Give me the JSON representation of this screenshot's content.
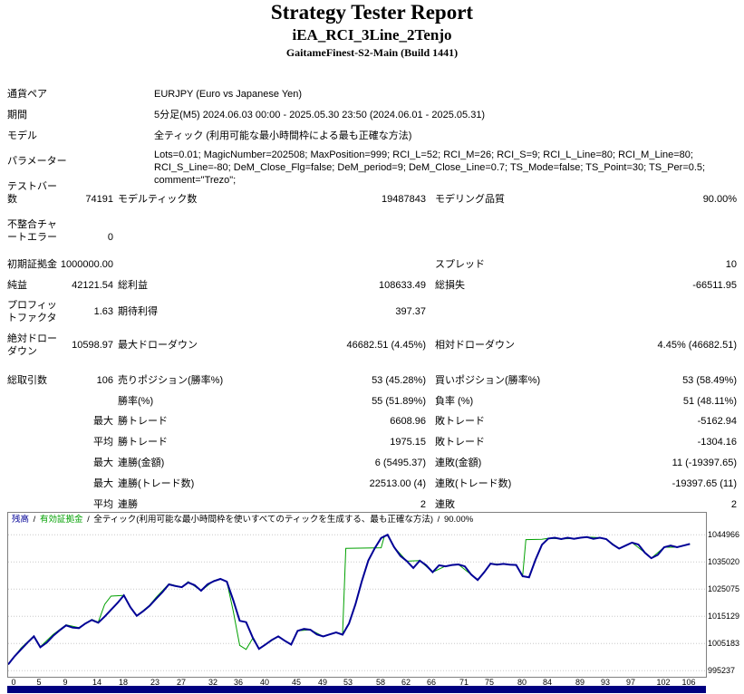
{
  "header": {
    "title": "Strategy Tester Report",
    "subtitle": "iEA_RCI_3Line_2Tenjo",
    "build": "GaitameFinest-S2-Main (Build 1441)"
  },
  "info": {
    "symbol_label": "通貨ペア",
    "symbol_value": "EURJPY (Euro vs Japanese Yen)",
    "period_label": "期間",
    "period_value": "5分足(M5) 2024.06.03 00:00 - 2025.05.30 23:50 (2024.06.01 - 2025.05.31)",
    "model_label": "モデル",
    "model_value": "全ティック (利用可能な最小時間枠による最も正確な方法)",
    "params_label": "パラメーター",
    "params_value": "Lots=0.01; MagicNumber=202508; MaxPosition=999; RCI_L=52; RCI_M=26; RCI_S=9; RCI_L_Line=80; RCI_M_Line=80; RCI_S_Line=-80; DeM_Close_Flg=false; DeM_period=9; DeM_Close_Line=0.7; TS_Mode=false; TS_Point=30; TS_Per=0.5; comment=\"Trezo\";"
  },
  "stats_rows": [
    {
      "c1": "テストバー数",
      "c2": "74191",
      "c3": "モデルティック数",
      "c4": "19487843",
      "c5": "モデリング品質",
      "c6": "90.00%"
    },
    {
      "c1": "不整合チャートエラー",
      "c2": "0"
    },
    {
      "c1": "初期証拠金",
      "c2": "1000000.00",
      "c5": "スプレッド",
      "c6": "10"
    },
    {
      "c1": "純益",
      "c2": "42121.54",
      "c3": "総利益",
      "c4": "108633.49",
      "c5": "総損失",
      "c6": "-66511.95"
    },
    {
      "c1": "プロフィットファクタ",
      "c2": "1.63",
      "c3": "期待利得",
      "c4": "397.37"
    },
    {
      "c1": "絶対ドローダウン",
      "c2": "10598.97",
      "c3": "最大ドローダウン",
      "c4": "46682.51 (4.45%)",
      "c5": "相対ドローダウン",
      "c6": "4.45% (46682.51)"
    },
    {
      "c1": "総取引数",
      "c2": "106",
      "c3": "売りポジション(勝率%)",
      "c4": "53 (45.28%)",
      "c5": "買いポジション(勝率%)",
      "c6": "53 (58.49%)"
    },
    {
      "c3": "勝率(%)",
      "c4": "55 (51.89%)",
      "c5": "負率 (%)",
      "c6": "51 (48.11%)"
    },
    {
      "c2": "最大",
      "c3": "勝トレード",
      "c4": "6608.96",
      "c5": "敗トレード",
      "c6": "-5162.94"
    },
    {
      "c2": "平均",
      "c3": "勝トレード",
      "c4": "1975.15",
      "c5": "敗トレード",
      "c6": "-1304.16"
    },
    {
      "c2": "最大",
      "c3": "連勝(金額)",
      "c4": "6 (5495.37)",
      "c5": "連敗(金額)",
      "c6": "11 (-19397.65)"
    },
    {
      "c2": "最大",
      "c3": "連勝(トレード数)",
      "c4": "22513.00 (4)",
      "c5": "連敗(トレード数)",
      "c6": "-19397.65 (11)"
    },
    {
      "c2": "平均",
      "c3": "連勝",
      "c4": "2",
      "c5": "連敗",
      "c6": "2"
    }
  ],
  "chart_data": {
    "type": "line",
    "title": "",
    "xlabel": "",
    "ylabel": "",
    "legend": {
      "balance": "残高",
      "sep": "/",
      "equity": "有効証拠金",
      "model": "全ティック(利用可能な最小時間枠を使いすべてのティックを生成する、最も正確な方法)",
      "quality": "90.00%"
    },
    "x_ticks": [
      0,
      5,
      9,
      14,
      18,
      23,
      27,
      32,
      36,
      40,
      45,
      49,
      53,
      58,
      62,
      66,
      71,
      75,
      80,
      84,
      89,
      93,
      97,
      102,
      106
    ],
    "y_ticks": [
      995237,
      1005183,
      1015129,
      1025075,
      1035020,
      1044966
    ],
    "xlim": [
      0,
      108.5
    ],
    "ylim": [
      993000,
      1053000
    ],
    "grid": "horizontal-dotted",
    "legend_position": "top-left-inside",
    "colors": {
      "grid": "#c8c8c8",
      "lots_bar": "#000080",
      "border": "#808080"
    },
    "series": [
      {
        "name": "equity",
        "color": "#00A000",
        "width": 1,
        "points": [
          [
            0,
            997500
          ],
          [
            2,
            1003500
          ],
          [
            4,
            1008000
          ],
          [
            5,
            1004000
          ],
          [
            7,
            1008500
          ],
          [
            9,
            1012000
          ],
          [
            11,
            1011000
          ],
          [
            13,
            1014000
          ],
          [
            14,
            1013000
          ],
          [
            15,
            1019500
          ],
          [
            16,
            1022500
          ],
          [
            18,
            1022800
          ],
          [
            19,
            1018500
          ],
          [
            20,
            1015300
          ],
          [
            22,
            1019200
          ],
          [
            23,
            1022000
          ],
          [
            25,
            1027000
          ],
          [
            27,
            1025800
          ],
          [
            28,
            1027800
          ],
          [
            30,
            1024500
          ],
          [
            32,
            1028200
          ],
          [
            33,
            1028800
          ],
          [
            34,
            1027800
          ],
          [
            35,
            1017000
          ],
          [
            36,
            1004500
          ],
          [
            37,
            1003000
          ],
          [
            38,
            1007000
          ],
          [
            39,
            1003200
          ],
          [
            40,
            1004800
          ],
          [
            42,
            1007800
          ],
          [
            44,
            1004800
          ],
          [
            45,
            1009800
          ],
          [
            47,
            1010200
          ],
          [
            49,
            1007800
          ],
          [
            51,
            1009200
          ],
          [
            52,
            1008400
          ],
          [
            52.5,
            1040000
          ],
          [
            58,
            1040200
          ],
          [
            58.5,
            1044500
          ],
          [
            59,
            1044966
          ],
          [
            60,
            1040500
          ],
          [
            62,
            1035300
          ],
          [
            64,
            1035500
          ],
          [
            66,
            1031300
          ],
          [
            68,
            1033500
          ],
          [
            70,
            1034100
          ],
          [
            72,
            1030400
          ],
          [
            73,
            1028400
          ],
          [
            75,
            1034400
          ],
          [
            79,
            1033900
          ],
          [
            80,
            1029800
          ],
          [
            80.5,
            1043200
          ],
          [
            83,
            1043300
          ],
          [
            84,
            1043700
          ],
          [
            86,
            1043500
          ],
          [
            88,
            1043600
          ],
          [
            90,
            1044100
          ],
          [
            92,
            1043900
          ],
          [
            93,
            1043400
          ],
          [
            95,
            1039900
          ],
          [
            97,
            1042100
          ],
          [
            99,
            1038400
          ],
          [
            100,
            1036400
          ],
          [
            102,
            1040400
          ],
          [
            104,
            1040400
          ],
          [
            106,
            1041600
          ]
        ]
      },
      {
        "name": "balance",
        "color": "#000096",
        "width": 2,
        "points": [
          [
            0,
            997500
          ],
          [
            1,
            1000500
          ],
          [
            2,
            1003000
          ],
          [
            3,
            1005500
          ],
          [
            4,
            1007800
          ],
          [
            5,
            1003800
          ],
          [
            6,
            1005500
          ],
          [
            7,
            1008000
          ],
          [
            8,
            1010000
          ],
          [
            9,
            1011800
          ],
          [
            10,
            1011000
          ],
          [
            11,
            1010800
          ],
          [
            12,
            1012500
          ],
          [
            13,
            1013800
          ],
          [
            14,
            1012800
          ],
          [
            15,
            1015000
          ],
          [
            16,
            1017500
          ],
          [
            17,
            1020000
          ],
          [
            18,
            1022800
          ],
          [
            19,
            1018500
          ],
          [
            20,
            1015300
          ],
          [
            21,
            1017000
          ],
          [
            22,
            1019000
          ],
          [
            23,
            1021500
          ],
          [
            24,
            1024000
          ],
          [
            25,
            1026800
          ],
          [
            26,
            1026200
          ],
          [
            27,
            1025800
          ],
          [
            28,
            1027500
          ],
          [
            29,
            1026500
          ],
          [
            30,
            1024500
          ],
          [
            31,
            1026800
          ],
          [
            32,
            1028000
          ],
          [
            33,
            1028800
          ],
          [
            34,
            1027800
          ],
          [
            35,
            1021000
          ],
          [
            36,
            1013500
          ],
          [
            37,
            1013000
          ],
          [
            38,
            1007500
          ],
          [
            39,
            1003200
          ],
          [
            40,
            1004800
          ],
          [
            41,
            1006500
          ],
          [
            42,
            1007800
          ],
          [
            43,
            1006200
          ],
          [
            44,
            1004800
          ],
          [
            45,
            1009800
          ],
          [
            46,
            1010500
          ],
          [
            47,
            1010200
          ],
          [
            48,
            1008500
          ],
          [
            49,
            1007800
          ],
          [
            50,
            1008500
          ],
          [
            51,
            1009200
          ],
          [
            52,
            1008400
          ],
          [
            53,
            1012500
          ],
          [
            54,
            1019500
          ],
          [
            55,
            1028000
          ],
          [
            56,
            1035500
          ],
          [
            57,
            1040000
          ],
          [
            58,
            1043800
          ],
          [
            59,
            1044966
          ],
          [
            60,
            1040500
          ],
          [
            61,
            1037200
          ],
          [
            62,
            1035300
          ],
          [
            63,
            1032800
          ],
          [
            64,
            1035500
          ],
          [
            65,
            1033800
          ],
          [
            66,
            1031300
          ],
          [
            67,
            1033800
          ],
          [
            68,
            1033400
          ],
          [
            69,
            1033900
          ],
          [
            70,
            1034100
          ],
          [
            71,
            1033400
          ],
          [
            72,
            1030400
          ],
          [
            73,
            1028400
          ],
          [
            74,
            1031200
          ],
          [
            75,
            1034400
          ],
          [
            76,
            1034000
          ],
          [
            77,
            1034300
          ],
          [
            78,
            1034000
          ],
          [
            79,
            1033900
          ],
          [
            80,
            1029800
          ],
          [
            81,
            1029400
          ],
          [
            82,
            1035800
          ],
          [
            83,
            1041300
          ],
          [
            84,
            1043600
          ],
          [
            85,
            1043900
          ],
          [
            86,
            1043400
          ],
          [
            87,
            1043900
          ],
          [
            88,
            1043500
          ],
          [
            89,
            1043900
          ],
          [
            90,
            1044100
          ],
          [
            91,
            1043500
          ],
          [
            92,
            1043900
          ],
          [
            93,
            1043400
          ],
          [
            94,
            1041400
          ],
          [
            95,
            1039900
          ],
          [
            96,
            1041000
          ],
          [
            97,
            1042100
          ],
          [
            98,
            1041400
          ],
          [
            99,
            1038400
          ],
          [
            100,
            1036400
          ],
          [
            101,
            1037600
          ],
          [
            102,
            1040400
          ],
          [
            103,
            1041000
          ],
          [
            104,
            1040400
          ],
          [
            105,
            1041000
          ],
          [
            106,
            1041600
          ]
        ]
      }
    ]
  }
}
